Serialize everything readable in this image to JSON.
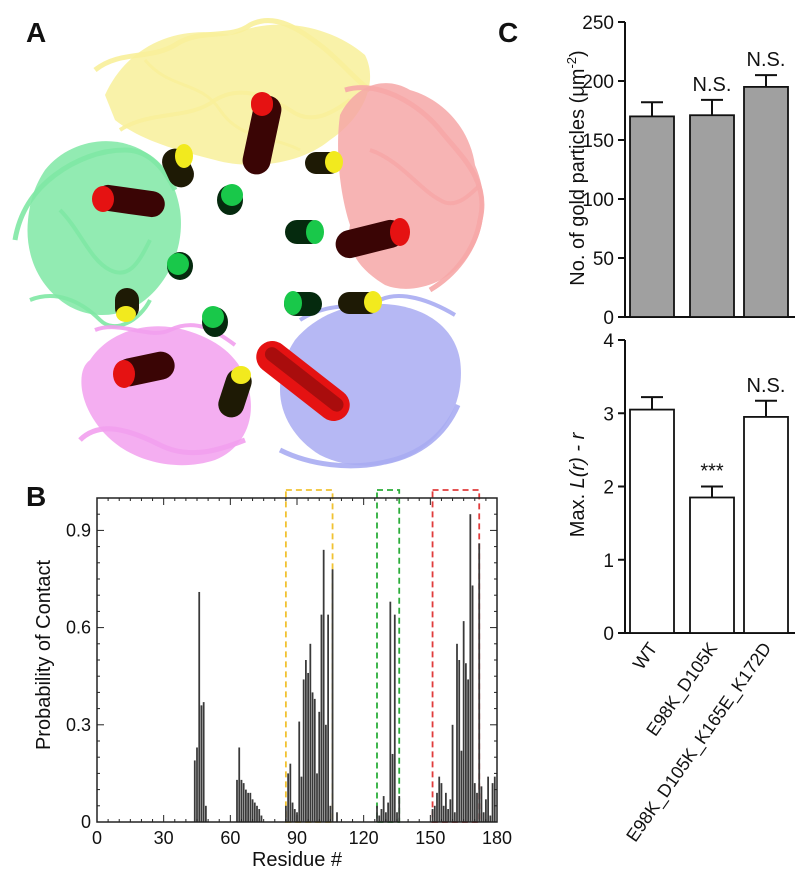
{
  "panels": {
    "a": {
      "label": "A"
    },
    "b": {
      "label": "B"
    },
    "c": {
      "label": "C"
    }
  },
  "colors": {
    "green": "#7fe8a4",
    "yellow": "#f8f09a",
    "salmon": "#f6a7a7",
    "pink": "#f2a0ee",
    "lavender": "#a9acf2",
    "helix_red": "#e51212",
    "helix_yellow": "#f2ea1e",
    "helix_green": "#19c84a",
    "bar_dark": "#3a3a3a",
    "bar_gray": "#a0a0a0",
    "box_yellow": "#f1c232",
    "box_green": "#2cae3a",
    "box_red": "#e03c3c"
  },
  "chart_data": [
    {
      "id": "B",
      "type": "bar",
      "xlabel": "Residue #",
      "ylabel": "Probability of Contact",
      "xlim": [
        0,
        180
      ],
      "ylim": [
        0,
        1.0
      ],
      "xticks": [
        "0",
        "30",
        "60",
        "90",
        "120",
        "150",
        "180"
      ],
      "yticks": [
        "0",
        "0.3",
        "0.6",
        "0.9"
      ],
      "regions": [
        {
          "color": "yellow",
          "x": [
            85,
            106
          ]
        },
        {
          "color": "green",
          "x": [
            126,
            136
          ]
        },
        {
          "color": "red",
          "x": [
            151,
            172
          ]
        }
      ],
      "x": [
        44,
        45,
        46,
        47,
        48,
        49,
        63,
        64,
        65,
        66,
        67,
        68,
        69,
        70,
        71,
        72,
        73,
        74,
        85,
        86,
        87,
        88,
        89,
        90,
        91,
        92,
        93,
        94,
        95,
        96,
        97,
        98,
        99,
        100,
        101,
        102,
        103,
        104,
        105,
        106,
        108,
        126,
        127,
        128,
        129,
        130,
        131,
        132,
        133,
        134,
        135,
        136,
        151,
        152,
        153,
        154,
        155,
        156,
        157,
        158,
        159,
        160,
        161,
        162,
        163,
        164,
        165,
        166,
        167,
        168,
        169,
        170,
        171,
        172,
        173,
        174,
        175,
        176,
        177,
        178,
        179
      ],
      "values": [
        0.19,
        0.23,
        0.71,
        0.36,
        0.37,
        0.05,
        0.13,
        0.23,
        0.13,
        0.12,
        0.1,
        0.09,
        0.09,
        0.07,
        0.06,
        0.05,
        0.04,
        0.02,
        0.05,
        0.15,
        0.18,
        0.06,
        0.04,
        0.03,
        0.31,
        0.14,
        0.44,
        0.5,
        0.46,
        0.55,
        0.4,
        0.38,
        0.15,
        0.34,
        0.64,
        0.84,
        0.3,
        0.64,
        0.05,
        0.78,
        0.03,
        0.05,
        0.02,
        0.04,
        0.08,
        0.03,
        0.06,
        0.68,
        0.21,
        0.64,
        0.03,
        0.08,
        0.04,
        0.05,
        0.09,
        0.14,
        0.12,
        0.05,
        0.09,
        0.04,
        0.07,
        0.3,
        0.03,
        0.55,
        0.5,
        0.22,
        0.62,
        0.49,
        0.44,
        0.95,
        0.73,
        0.12,
        0.09,
        0.86,
        0.11,
        0.03,
        0.07,
        0.14,
        0.02,
        0.12,
        0.14
      ]
    },
    {
      "id": "C-top",
      "type": "bar",
      "ylabel_prefix": "No. of gold particles (",
      "ylabel_unit": "μm",
      "ylabel_exp": "-2",
      "ylabel_suffix": ")",
      "ylim": [
        0,
        250
      ],
      "yticks": [
        "0",
        "50",
        "100",
        "150",
        "200",
        "250"
      ],
      "categories": [
        "WT",
        "E98K_D105K",
        "E98K_D105K_K165E_K172D"
      ],
      "values": [
        170,
        171,
        195
      ],
      "errors": [
        12,
        13,
        10
      ],
      "annotations": [
        "",
        "N.S.",
        "N.S."
      ]
    },
    {
      "id": "C-bottom",
      "type": "bar",
      "ylabel_prefix": "Max. ",
      "ylabel_italic": "L(r) - r",
      "ylim": [
        0,
        4
      ],
      "yticks": [
        "0",
        "1",
        "2",
        "3",
        "4"
      ],
      "categories": [
        "WT",
        "E98K_D105K",
        "E98K_D105K_K165E_K172D"
      ],
      "values": [
        3.05,
        1.85,
        2.95
      ],
      "errors": [
        0.17,
        0.15,
        0.22
      ],
      "annotations": [
        "",
        "***",
        "N.S."
      ]
    }
  ]
}
